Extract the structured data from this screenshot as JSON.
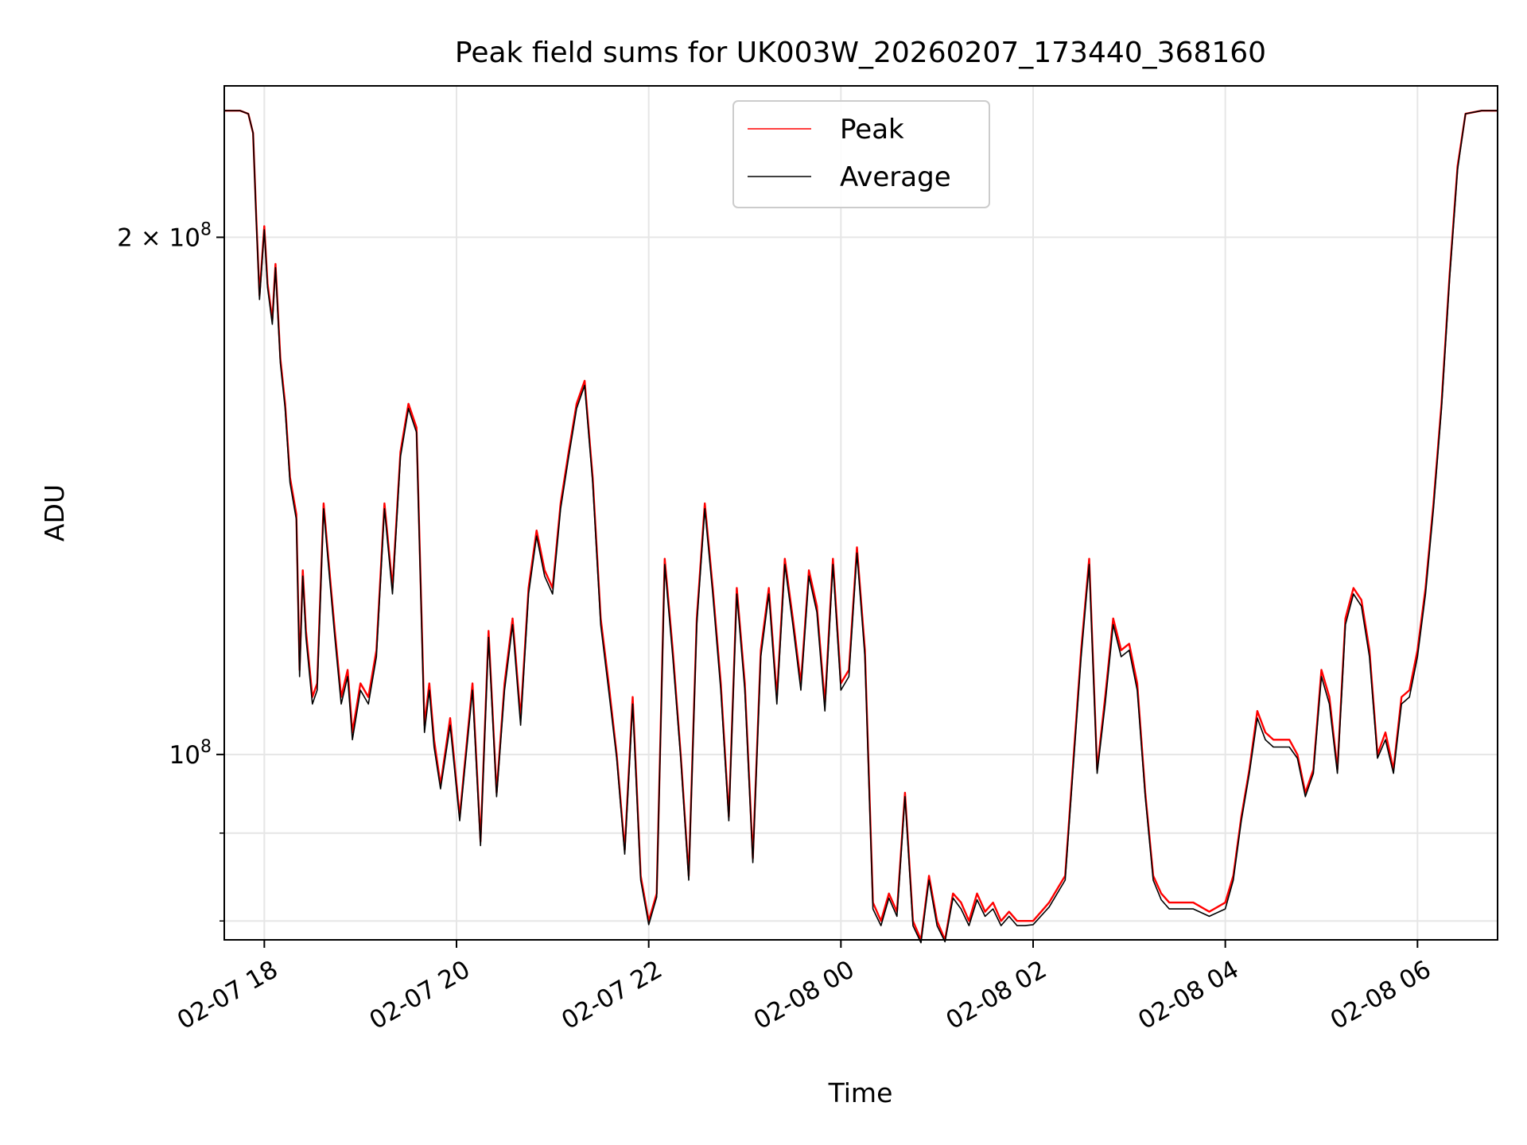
{
  "chart_data": {
    "type": "line",
    "title": "Peak field sums for UK003W_20260207_173440_368160",
    "xlabel": "Time",
    "ylabel": "ADU",
    "x_scale": "time",
    "y_scale": "log",
    "xlim": [
      "2026-02-07 17:35",
      "2026-02-08 06:50"
    ],
    "ylim": [
      78000000.0,
      245000000.0
    ],
    "x_ticks": [
      {
        "value": "2026-02-07 18:00",
        "label": "02-07 18"
      },
      {
        "value": "2026-02-07 20:00",
        "label": "02-07 20"
      },
      {
        "value": "2026-02-07 22:00",
        "label": "02-07 22"
      },
      {
        "value": "2026-02-08 00:00",
        "label": "02-08 00"
      },
      {
        "value": "2026-02-08 02:00",
        "label": "02-08 02"
      },
      {
        "value": "2026-02-08 04:00",
        "label": "02-08 04"
      },
      {
        "value": "2026-02-08 06:00",
        "label": "02-08 06"
      }
    ],
    "y_major_ticks": [
      {
        "value": 100000000.0,
        "base": "10",
        "exp": "8",
        "coef": ""
      },
      {
        "value": 200000000.0,
        "base": "10",
        "exp": "8",
        "coef": "2"
      }
    ],
    "y_minor_ticks": [
      80000000.0,
      90000000.0
    ],
    "grid": true,
    "legend_position": "upper-center",
    "series": [
      {
        "name": "Peak",
        "color": "#ff0000",
        "x": [
          "2026-02-07 17:35",
          "2026-02-07 17:45",
          "2026-02-07 17:50",
          "2026-02-07 17:53",
          "2026-02-07 17:55",
          "2026-02-07 17:57",
          "2026-02-07 18:00",
          "2026-02-07 18:02",
          "2026-02-07 18:05",
          "2026-02-07 18:07",
          "2026-02-07 18:10",
          "2026-02-07 18:13",
          "2026-02-07 18:16",
          "2026-02-07 18:20",
          "2026-02-07 18:22",
          "2026-02-07 18:24",
          "2026-02-07 18:26",
          "2026-02-07 18:30",
          "2026-02-07 18:33",
          "2026-02-07 18:37",
          "2026-02-07 18:40",
          "2026-02-07 18:44",
          "2026-02-07 18:48",
          "2026-02-07 18:52",
          "2026-02-07 18:55",
          "2026-02-07 19:00",
          "2026-02-07 19:05",
          "2026-02-07 19:10",
          "2026-02-07 19:15",
          "2026-02-07 19:20",
          "2026-02-07 19:25",
          "2026-02-07 19:30",
          "2026-02-07 19:35",
          "2026-02-07 19:40",
          "2026-02-07 19:43",
          "2026-02-07 19:46",
          "2026-02-07 19:50",
          "2026-02-07 19:56",
          "2026-02-07 20:02",
          "2026-02-07 20:10",
          "2026-02-07 20:15",
          "2026-02-07 20:20",
          "2026-02-07 20:25",
          "2026-02-07 20:30",
          "2026-02-07 20:35",
          "2026-02-07 20:40",
          "2026-02-07 20:45",
          "2026-02-07 20:50",
          "2026-02-07 20:55",
          "2026-02-07 21:00",
          "2026-02-07 21:05",
          "2026-02-07 21:10",
          "2026-02-07 21:15",
          "2026-02-07 21:20",
          "2026-02-07 21:25",
          "2026-02-07 21:30",
          "2026-02-07 21:35",
          "2026-02-07 21:40",
          "2026-02-07 21:45",
          "2026-02-07 21:50",
          "2026-02-07 21:55",
          "2026-02-07 22:00",
          "2026-02-07 22:05",
          "2026-02-07 22:10",
          "2026-02-07 22:15",
          "2026-02-07 22:20",
          "2026-02-07 22:25",
          "2026-02-07 22:30",
          "2026-02-07 22:35",
          "2026-02-07 22:40",
          "2026-02-07 22:45",
          "2026-02-07 22:50",
          "2026-02-07 22:55",
          "2026-02-07 23:00",
          "2026-02-07 23:05",
          "2026-02-07 23:10",
          "2026-02-07 23:15",
          "2026-02-07 23:20",
          "2026-02-07 23:25",
          "2026-02-07 23:30",
          "2026-02-07 23:35",
          "2026-02-07 23:40",
          "2026-02-07 23:45",
          "2026-02-07 23:50",
          "2026-02-07 23:55",
          "2026-02-08 00:00",
          "2026-02-08 00:05",
          "2026-02-08 00:10",
          "2026-02-08 00:15",
          "2026-02-08 00:20",
          "2026-02-08 00:25",
          "2026-02-08 00:30",
          "2026-02-08 00:35",
          "2026-02-08 00:40",
          "2026-02-08 00:45",
          "2026-02-08 00:50",
          "2026-02-08 00:55",
          "2026-02-08 01:00",
          "2026-02-08 01:05",
          "2026-02-08 01:10",
          "2026-02-08 01:15",
          "2026-02-08 01:20",
          "2026-02-08 01:25",
          "2026-02-08 01:30",
          "2026-02-08 01:35",
          "2026-02-08 01:40",
          "2026-02-08 01:45",
          "2026-02-08 01:50",
          "2026-02-08 01:55",
          "2026-02-08 02:00",
          "2026-02-08 02:10",
          "2026-02-08 02:20",
          "2026-02-08 02:30",
          "2026-02-08 02:35",
          "2026-02-08 02:40",
          "2026-02-08 02:45",
          "2026-02-08 02:50",
          "2026-02-08 02:55",
          "2026-02-08 03:00",
          "2026-02-08 03:05",
          "2026-02-08 03:10",
          "2026-02-08 03:15",
          "2026-02-08 03:20",
          "2026-02-08 03:25",
          "2026-02-08 03:30",
          "2026-02-08 03:40",
          "2026-02-08 03:50",
          "2026-02-08 04:00",
          "2026-02-08 04:05",
          "2026-02-08 04:10",
          "2026-02-08 04:15",
          "2026-02-08 04:20",
          "2026-02-08 04:25",
          "2026-02-08 04:30",
          "2026-02-08 04:40",
          "2026-02-08 04:45",
          "2026-02-08 04:50",
          "2026-02-08 04:55",
          "2026-02-08 05:00",
          "2026-02-08 05:05",
          "2026-02-08 05:10",
          "2026-02-08 05:15",
          "2026-02-08 05:20",
          "2026-02-08 05:25",
          "2026-02-08 05:30",
          "2026-02-08 05:35",
          "2026-02-08 05:40",
          "2026-02-08 05:45",
          "2026-02-08 05:50",
          "2026-02-08 05:55",
          "2026-02-08 06:00",
          "2026-02-08 06:05",
          "2026-02-08 06:10",
          "2026-02-08 06:15",
          "2026-02-08 06:20",
          "2026-02-08 06:25",
          "2026-02-08 06:30",
          "2026-02-08 06:40",
          "2026-02-08 06:50"
        ],
        "values": [
          237000000.0,
          237000000.0,
          236000000.0,
          230000000.0,
          205000000.0,
          185000000.0,
          203000000.0,
          188000000.0,
          179000000.0,
          193000000.0,
          170000000.0,
          160000000.0,
          145000000.0,
          138000000.0,
          112000000.0,
          128000000.0,
          118000000.0,
          108000000.0,
          110000000.0,
          140000000.0,
          130000000.0,
          118000000.0,
          108000000.0,
          112000000.0,
          103000000.0,
          110000000.0,
          108000000.0,
          115000000.0,
          140000000.0,
          125000000.0,
          150000000.0,
          160000000.0,
          155000000.0,
          104000000.0,
          110000000.0,
          102000000.0,
          96000000.0,
          105000000.0,
          92000000.0,
          110000000.0,
          89000000.0,
          118000000.0,
          95000000.0,
          110000000.0,
          120000000.0,
          105000000.0,
          125000000.0,
          135000000.0,
          128000000.0,
          125000000.0,
          140000000.0,
          150000000.0,
          160000000.0,
          165000000.0,
          145000000.0,
          120000000.0,
          110000000.0,
          100000000.0,
          88000000.0,
          108000000.0,
          85000000.0,
          80000000.0,
          83000000.0,
          130000000.0,
          115000000.0,
          100000000.0,
          85000000.0,
          120000000.0,
          140000000.0,
          125000000.0,
          110000000.0,
          92000000.0,
          125000000.0,
          110000000.0,
          87000000.0,
          115000000.0,
          125000000.0,
          108000000.0,
          130000000.0,
          120000000.0,
          110000000.0,
          128000000.0,
          122000000.0,
          107000000.0,
          130000000.0,
          110000000.0,
          112000000.0,
          132000000.0,
          115000000.0,
          82000000.0,
          80000000.0,
          83000000.0,
          81000000.0,
          95000000.0,
          80000000.0,
          78000000.0,
          85000000.0,
          80000000.0,
          78000000.0,
          83000000.0,
          82000000.0,
          80000000.0,
          83000000.0,
          81000000.0,
          82000000.0,
          80000000.0,
          81000000.0,
          80000000.0,
          80000000.0,
          80000000.0,
          82000000.0,
          85000000.0,
          115000000.0,
          130000000.0,
          98000000.0,
          108000000.0,
          120000000.0,
          115000000.0,
          116000000.0,
          110000000.0,
          95000000.0,
          85000000.0,
          83000000.0,
          82000000.0,
          82000000.0,
          82000000.0,
          81000000.0,
          82000000.0,
          85000000.0,
          92000000.0,
          98000000.0,
          106000000.0,
          103000000.0,
          102000000.0,
          102000000.0,
          100000000.0,
          95000000.0,
          98000000.0,
          112000000.0,
          108000000.0,
          98000000.0,
          120000000.0,
          125000000.0,
          123000000.0,
          115000000.0,
          100000000.0,
          103000000.0,
          98000000.0,
          108000000.0,
          109000000.0,
          115000000.0,
          125000000.0,
          140000000.0,
          160000000.0,
          190000000.0,
          220000000.0,
          236000000.0,
          237000000.0,
          237000000.0
        ]
      },
      {
        "name": "Average",
        "color": "#000000",
        "x": [
          "2026-02-07 17:35",
          "2026-02-07 17:45",
          "2026-02-07 17:50",
          "2026-02-07 17:53",
          "2026-02-07 17:55",
          "2026-02-07 17:57",
          "2026-02-07 18:00",
          "2026-02-07 18:02",
          "2026-02-07 18:05",
          "2026-02-07 18:07",
          "2026-02-07 18:10",
          "2026-02-07 18:13",
          "2026-02-07 18:16",
          "2026-02-07 18:20",
          "2026-02-07 18:22",
          "2026-02-07 18:24",
          "2026-02-07 18:26",
          "2026-02-07 18:30",
          "2026-02-07 18:33",
          "2026-02-07 18:37",
          "2026-02-07 18:40",
          "2026-02-07 18:44",
          "2026-02-07 18:48",
          "2026-02-07 18:52",
          "2026-02-07 18:55",
          "2026-02-07 19:00",
          "2026-02-07 19:05",
          "2026-02-07 19:10",
          "2026-02-07 19:15",
          "2026-02-07 19:20",
          "2026-02-07 19:25",
          "2026-02-07 19:30",
          "2026-02-07 19:35",
          "2026-02-07 19:40",
          "2026-02-07 19:43",
          "2026-02-07 19:46",
          "2026-02-07 19:50",
          "2026-02-07 19:56",
          "2026-02-07 20:02",
          "2026-02-07 20:10",
          "2026-02-07 20:15",
          "2026-02-07 20:20",
          "2026-02-07 20:25",
          "2026-02-07 20:30",
          "2026-02-07 20:35",
          "2026-02-07 20:40",
          "2026-02-07 20:45",
          "2026-02-07 20:50",
          "2026-02-07 20:55",
          "2026-02-07 21:00",
          "2026-02-07 21:05",
          "2026-02-07 21:10",
          "2026-02-07 21:15",
          "2026-02-07 21:20",
          "2026-02-07 21:25",
          "2026-02-07 21:30",
          "2026-02-07 21:35",
          "2026-02-07 21:40",
          "2026-02-07 21:45",
          "2026-02-07 21:50",
          "2026-02-07 21:55",
          "2026-02-07 22:00",
          "2026-02-07 22:05",
          "2026-02-07 22:10",
          "2026-02-07 22:15",
          "2026-02-07 22:20",
          "2026-02-07 22:25",
          "2026-02-07 22:30",
          "2026-02-07 22:35",
          "2026-02-07 22:40",
          "2026-02-07 22:45",
          "2026-02-07 22:50",
          "2026-02-07 22:55",
          "2026-02-07 23:00",
          "2026-02-07 23:05",
          "2026-02-07 23:10",
          "2026-02-07 23:15",
          "2026-02-07 23:20",
          "2026-02-07 23:25",
          "2026-02-07 23:30",
          "2026-02-07 23:35",
          "2026-02-07 23:40",
          "2026-02-07 23:45",
          "2026-02-07 23:50",
          "2026-02-07 23:55",
          "2026-02-08 00:00",
          "2026-02-08 00:05",
          "2026-02-08 00:10",
          "2026-02-08 00:15",
          "2026-02-08 00:20",
          "2026-02-08 00:25",
          "2026-02-08 00:30",
          "2026-02-08 00:35",
          "2026-02-08 00:40",
          "2026-02-08 00:45",
          "2026-02-08 00:50",
          "2026-02-08 00:55",
          "2026-02-08 01:00",
          "2026-02-08 01:05",
          "2026-02-08 01:10",
          "2026-02-08 01:15",
          "2026-02-08 01:20",
          "2026-02-08 01:25",
          "2026-02-08 01:30",
          "2026-02-08 01:35",
          "2026-02-08 01:40",
          "2026-02-08 01:45",
          "2026-02-08 01:50",
          "2026-02-08 01:55",
          "2026-02-08 02:00",
          "2026-02-08 02:10",
          "2026-02-08 02:20",
          "2026-02-08 02:30",
          "2026-02-08 02:35",
          "2026-02-08 02:40",
          "2026-02-08 02:45",
          "2026-02-08 02:50",
          "2026-02-08 02:55",
          "2026-02-08 03:00",
          "2026-02-08 03:05",
          "2026-02-08 03:10",
          "2026-02-08 03:15",
          "2026-02-08 03:20",
          "2026-02-08 03:25",
          "2026-02-08 03:30",
          "2026-02-08 03:40",
          "2026-02-08 03:50",
          "2026-02-08 04:00",
          "2026-02-08 04:05",
          "2026-02-08 04:10",
          "2026-02-08 04:15",
          "2026-02-08 04:20",
          "2026-02-08 04:25",
          "2026-02-08 04:30",
          "2026-02-08 04:40",
          "2026-02-08 04:45",
          "2026-02-08 04:50",
          "2026-02-08 04:55",
          "2026-02-08 05:00",
          "2026-02-08 05:05",
          "2026-02-08 05:10",
          "2026-02-08 05:15",
          "2026-02-08 05:20",
          "2026-02-08 05:25",
          "2026-02-08 05:30",
          "2026-02-08 05:35",
          "2026-02-08 05:40",
          "2026-02-08 05:45",
          "2026-02-08 05:50",
          "2026-02-08 05:55",
          "2026-02-08 06:00",
          "2026-02-08 06:05",
          "2026-02-08 06:10",
          "2026-02-08 06:15",
          "2026-02-08 06:20",
          "2026-02-08 06:25",
          "2026-02-08 06:30",
          "2026-02-08 06:40",
          "2026-02-08 06:50"
        ],
        "values": [
          237000000.0,
          237000000.0,
          236000000.0,
          230000000.0,
          204000000.0,
          184000000.0,
          202000000.0,
          187000000.0,
          178000000.0,
          192000000.0,
          169000000.0,
          159000000.0,
          144000000.0,
          137000000.0,
          111000000.0,
          127000000.0,
          117000000.0,
          107000000.0,
          109000000.0,
          139000000.0,
          129000000.0,
          117000000.0,
          107000000.0,
          111000000.0,
          102000000.0,
          109000000.0,
          107000000.0,
          114000000.0,
          139000000.0,
          124000000.0,
          149000000.0,
          159000000.0,
          154000000.0,
          103000000.0,
          109000000.0,
          101000000.0,
          95500000.0,
          104000000.0,
          91500000.0,
          109000000.0,
          88500000.0,
          117000000.0,
          94500000.0,
          109000000.0,
          119000000.0,
          104000000.0,
          124000000.0,
          134000000.0,
          127000000.0,
          124000000.0,
          139000000.0,
          149000000.0,
          159000000.0,
          164000000.0,
          144000000.0,
          119000000.0,
          109000000.0,
          99500000.0,
          87500000.0,
          107000000.0,
          84500000.0,
          79600000.0,
          82600000.0,
          129000000.0,
          114000000.0,
          99500000.0,
          84500000.0,
          119000000.0,
          139000000.0,
          124000000.0,
          109000000.0,
          91500000.0,
          124000000.0,
          109000000.0,
          86500000.0,
          114000000.0,
          124000000.0,
          107000000.0,
          129000000.0,
          119000000.0,
          109000000.0,
          127000000.0,
          121000000.0,
          106000000.0,
          129000000.0,
          109000000.0,
          111000000.0,
          131000000.0,
          114000000.0,
          81300000.0,
          79500000.0,
          82500000.0,
          80500000.0,
          94500000.0,
          79500000.0,
          77700000.0,
          84500000.0,
          79500000.0,
          77800000.0,
          82500000.0,
          81300000.0,
          79500000.0,
          82300000.0,
          80500000.0,
          81300000.0,
          79500000.0,
          80500000.0,
          79500000.0,
          79500000.0,
          79600000.0,
          81500000.0,
          84500000.0,
          114000000.0,
          129000000.0,
          97500000.0,
          107000000.0,
          119000000.0,
          114000000.0,
          115000000.0,
          109000000.0,
          94500000.0,
          84500000.0,
          82300000.0,
          81300000.0,
          81300000.0,
          81300000.0,
          80500000.0,
          81300000.0,
          84500000.0,
          91500000.0,
          97500000.0,
          105000000.0,
          102000000.0,
          101000000.0,
          101000000.0,
          99500000.0,
          94500000.0,
          97500000.0,
          111000000.0,
          107000000.0,
          97500000.0,
          119000000.0,
          124000000.0,
          122000000.0,
          114000000.0,
          99500000.0,
          102000000.0,
          97500000.0,
          107000000.0,
          108000000.0,
          114000000.0,
          124000000.0,
          139000000.0,
          159000000.0,
          189000000.0,
          219000000.0,
          236000000.0,
          237000000.0,
          237000000.0
        ]
      }
    ]
  }
}
